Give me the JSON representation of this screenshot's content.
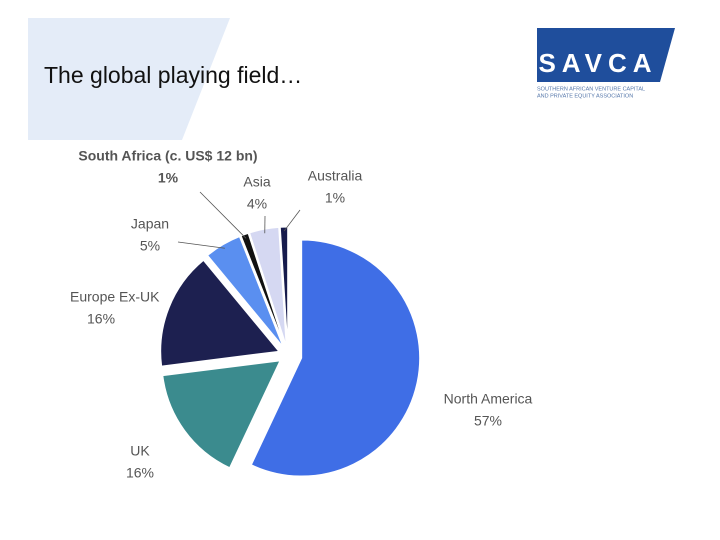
{
  "header": {
    "title": "The global playing field…",
    "logo": {
      "name": "SAVCA",
      "tagline": [
        "SOUTHERN AFRICAN VENTURE CAPITAL",
        "AND PRIVATE EQUITY ASSOCIATION"
      ]
    }
  },
  "chart_data": {
    "type": "pie",
    "categories": [
      "North America",
      "UK",
      "Europe Ex-UK",
      "Japan",
      "South Africa (c. US$ 12 bn)",
      "Asia",
      "Australia"
    ],
    "values": [
      57,
      16,
      16,
      5,
      1,
      4,
      1
    ],
    "value_labels": [
      "57%",
      "16%",
      "16%",
      "5%",
      "1%",
      "4%",
      "1%"
    ],
    "colors": [
      "#3f6ee6",
      "#3b8b8e",
      "#1d2050",
      "#5a8ff0",
      "#111111",
      "#d5d8f2",
      "#161b4c"
    ]
  }
}
